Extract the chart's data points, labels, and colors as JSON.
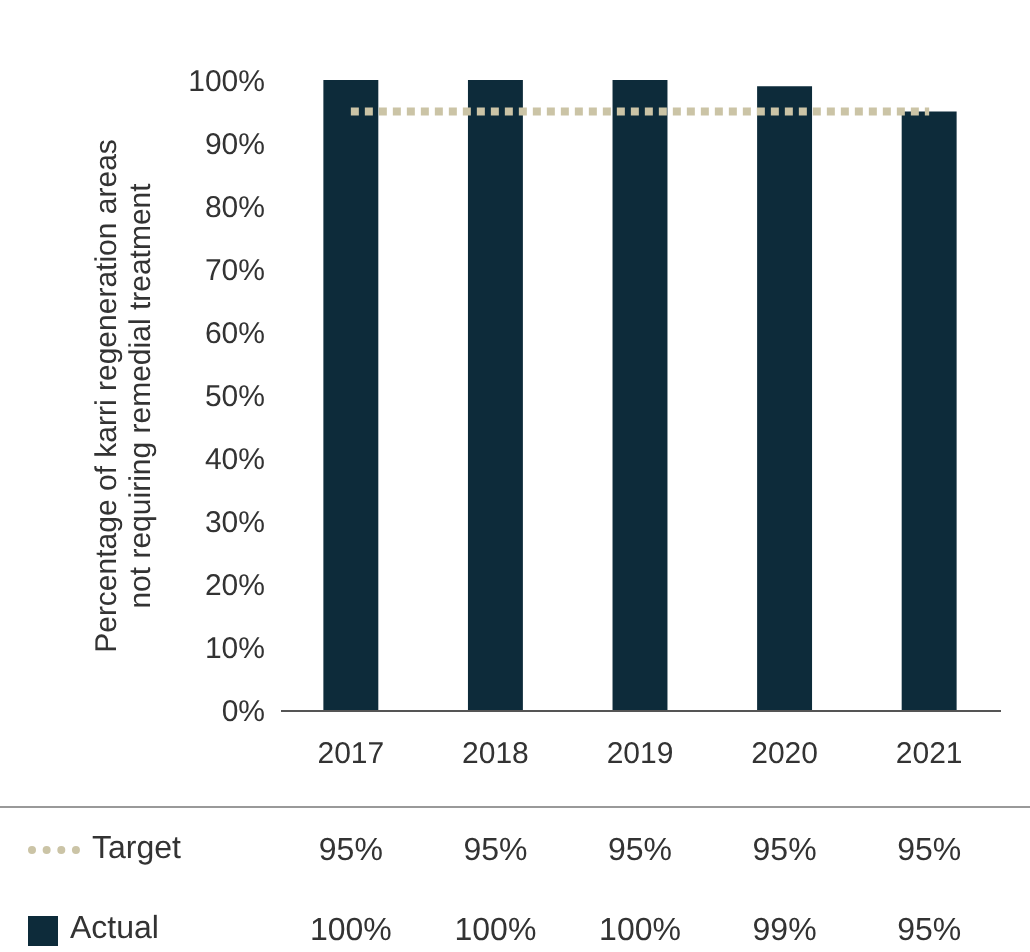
{
  "chart_data": {
    "type": "bar",
    "ylabel": "Percentage of karri regeneration areas not requiring remedial treatment",
    "categories": [
      "2017",
      "2018",
      "2019",
      "2020",
      "2021"
    ],
    "series": [
      {
        "name": "Target",
        "type": "line",
        "color": "#cbc4a6",
        "line_style": "dotted",
        "marker": "none",
        "values": [
          95,
          95,
          95,
          95,
          95
        ],
        "value_labels": [
          "95%",
          "95%",
          "95%",
          "95%",
          "95%"
        ]
      },
      {
        "name": "Actual",
        "color": "#0d2b3a",
        "values": [
          100,
          100,
          100,
          99,
          95
        ],
        "value_labels": [
          "100%",
          "100%",
          "100%",
          "99%",
          "95%"
        ]
      }
    ],
    "ylim": [
      0,
      100
    ],
    "yticks": [
      {
        "value": 0,
        "label": "0%"
      },
      {
        "value": 10,
        "label": "10%"
      },
      {
        "value": 20,
        "label": "20%"
      },
      {
        "value": 30,
        "label": "30%"
      },
      {
        "value": 40,
        "label": "40%"
      },
      {
        "value": 50,
        "label": "50%"
      },
      {
        "value": 60,
        "label": "60%"
      },
      {
        "value": 70,
        "label": "70%"
      },
      {
        "value": 80,
        "label": "80%"
      },
      {
        "value": 90,
        "label": "90%"
      },
      {
        "value": 100,
        "label": "100%"
      }
    ],
    "tick_labels": true,
    "legend": "bottom left"
  }
}
